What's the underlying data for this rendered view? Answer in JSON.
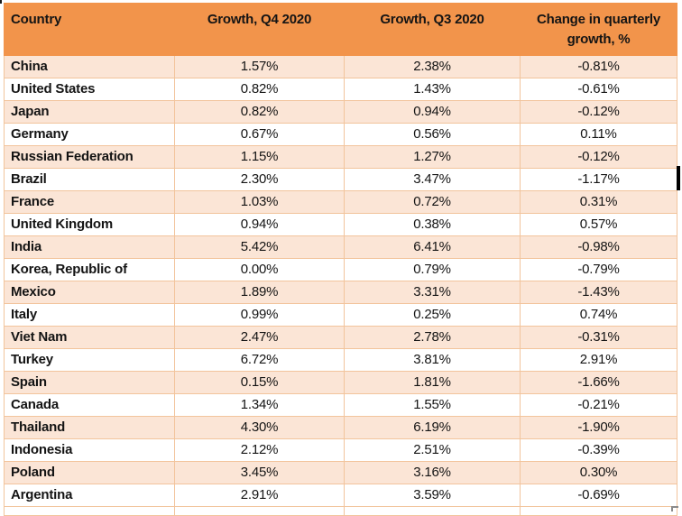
{
  "colors": {
    "header_bg": "#F2944B",
    "band_bg": "#FBE5D6",
    "border": "#F2C49C",
    "text": "#141414"
  },
  "table": {
    "headers": [
      "Country",
      "Growth, Q4 2020",
      "Growth, Q3 2020",
      "Change in quarterly growth, %"
    ],
    "rows": [
      {
        "country": "China",
        "q4": "1.57%",
        "q3": "2.38%",
        "change": "-0.81%"
      },
      {
        "country": "United States",
        "q4": "0.82%",
        "q3": "1.43%",
        "change": "-0.61%"
      },
      {
        "country": "Japan",
        "q4": "0.82%",
        "q3": "0.94%",
        "change": "-0.12%"
      },
      {
        "country": "Germany",
        "q4": "0.67%",
        "q3": "0.56%",
        "change": "0.11%"
      },
      {
        "country": "Russian Federation",
        "q4": "1.15%",
        "q3": "1.27%",
        "change": "-0.12%"
      },
      {
        "country": "Brazil",
        "q4": "2.30%",
        "q3": "3.47%",
        "change": "-1.17%"
      },
      {
        "country": "France",
        "q4": "1.03%",
        "q3": "0.72%",
        "change": "0.31%"
      },
      {
        "country": "United Kingdom",
        "q4": "0.94%",
        "q3": "0.38%",
        "change": "0.57%"
      },
      {
        "country": "India",
        "q4": "5.42%",
        "q3": "6.41%",
        "change": "-0.98%"
      },
      {
        "country": "Korea, Republic of",
        "q4": "0.00%",
        "q3": "0.79%",
        "change": "-0.79%"
      },
      {
        "country": "Mexico",
        "q4": "1.89%",
        "q3": "3.31%",
        "change": "-1.43%"
      },
      {
        "country": "Italy",
        "q4": "0.99%",
        "q3": "0.25%",
        "change": "0.74%"
      },
      {
        "country": "Viet Nam",
        "q4": "2.47%",
        "q3": "2.78%",
        "change": "-0.31%"
      },
      {
        "country": "Turkey",
        "q4": "6.72%",
        "q3": "3.81%",
        "change": "2.91%"
      },
      {
        "country": "Spain",
        "q4": "0.15%",
        "q3": "1.81%",
        "change": "-1.66%"
      },
      {
        "country": "Canada",
        "q4": "1.34%",
        "q3": "1.55%",
        "change": "-0.21%"
      },
      {
        "country": "Thailand",
        "q4": "4.30%",
        "q3": "6.19%",
        "change": "-1.90%"
      },
      {
        "country": "Indonesia",
        "q4": "2.12%",
        "q3": "2.51%",
        "change": "-0.39%"
      },
      {
        "country": "Poland",
        "q4": "3.45%",
        "q3": "3.16%",
        "change": "0.30%"
      },
      {
        "country": "Argentina",
        "q4": "2.91%",
        "q3": "3.59%",
        "change": "-0.69%"
      }
    ]
  }
}
